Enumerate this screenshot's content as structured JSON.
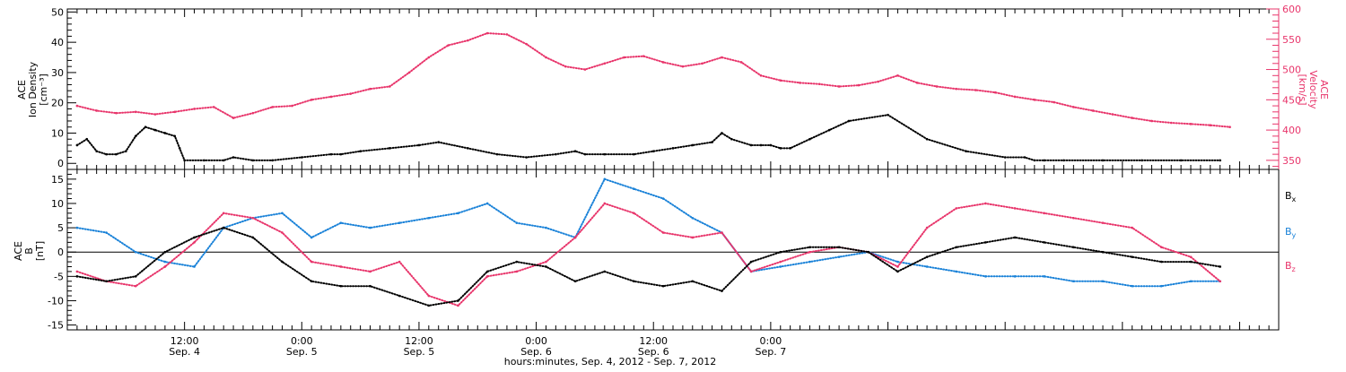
{
  "chart_data": [
    {
      "type": "scatter",
      "panel": "top",
      "left_axis_label": [
        "ACE",
        "Ion Density",
        "[cm⁻³]"
      ],
      "right_axis_label": [
        "ACE",
        "Velocity",
        "[km/s]"
      ],
      "ylim_left": [
        -2,
        51
      ],
      "ylim_right": [
        335,
        600
      ],
      "left_ticks": [
        "0",
        "10",
        "20",
        "30",
        "40",
        "50"
      ],
      "right_ticks": [
        "350",
        "400",
        "450",
        "500",
        "550",
        "600"
      ],
      "series": [
        {
          "name": "Density",
          "color": "#000000",
          "axis": "left",
          "x": [
            1.0,
            2.0,
            3.0,
            4.0,
            5.0,
            6.0,
            7.0,
            8.0,
            9.0,
            10.0,
            11.0,
            11.5,
            12.0,
            14.0,
            16.0,
            17.0,
            19.0,
            21.0,
            24.0,
            27.0,
            28.0,
            30.0,
            33.0,
            36.0,
            38.0,
            41.0,
            44.0,
            47.0,
            50.0,
            52.0,
            53.0,
            55.0,
            58.0,
            60.0,
            62.0,
            64.0,
            66.0,
            67.0,
            68.0,
            70.0,
            71.0,
            72.0,
            73.0,
            74.0,
            76.0,
            78.0,
            80.0,
            84.0,
            88.0,
            92.0,
            96.0,
            98.0,
            99.0,
            100.0,
            102.0,
            106.0,
            110.0,
            114.0,
            118.0
          ],
          "y": [
            6,
            8,
            4,
            3,
            3,
            4,
            9,
            12,
            11,
            10,
            9,
            5,
            1,
            1,
            1,
            2,
            1,
            1,
            2,
            3,
            3,
            4,
            5,
            6,
            7,
            5,
            3,
            2,
            3,
            4,
            3,
            3,
            3,
            4,
            5,
            6,
            7,
            10,
            8,
            6,
            6,
            6,
            5,
            5,
            8,
            11,
            14,
            16,
            8,
            4,
            2,
            2,
            1,
            1,
            1,
            1,
            1,
            1,
            1
          ]
        },
        {
          "name": "Velocity",
          "color": "#e8356b",
          "axis": "right",
          "x": [
            1.0,
            3.0,
            5.0,
            7.0,
            9.0,
            11.0,
            13.0,
            15.0,
            17.0,
            19.0,
            21.0,
            23.0,
            25.0,
            27.0,
            29.0,
            31.0,
            33.0,
            35.0,
            37.0,
            39.0,
            41.0,
            43.0,
            45.0,
            47.0,
            49.0,
            51.0,
            53.0,
            55.0,
            57.0,
            59.0,
            61.0,
            63.0,
            65.0,
            67.0,
            69.0,
            71.0,
            73.0,
            75.0,
            77.0,
            79.0,
            81.0,
            83.0,
            85.0,
            87.0,
            89.0,
            91.0,
            93.0,
            95.0,
            97.0,
            99.0,
            101.0,
            103.0,
            105.0,
            107.0,
            109.0,
            111.0,
            113.0,
            115.0,
            117.0,
            119.0
          ],
          "y": [
            440,
            432,
            428,
            430,
            426,
            430,
            435,
            438,
            420,
            428,
            438,
            440,
            450,
            455,
            460,
            468,
            472,
            495,
            520,
            540,
            548,
            560,
            558,
            542,
            520,
            505,
            500,
            510,
            520,
            522,
            512,
            505,
            510,
            520,
            512,
            490,
            482,
            478,
            476,
            472,
            474,
            480,
            490,
            478,
            472,
            468,
            466,
            462,
            455,
            450,
            446,
            438,
            432,
            426,
            420,
            415,
            412,
            410,
            408,
            405
          ]
        }
      ]
    },
    {
      "type": "scatter",
      "panel": "bottom",
      "left_axis_label": [
        "ACE",
        "B",
        "[nT]"
      ],
      "ylim": [
        -16,
        17
      ],
      "ticks": [
        "-15",
        "-10",
        "-5",
        "0",
        "5",
        "10",
        "15"
      ],
      "legend": [
        {
          "label": "B",
          "sub": "x",
          "color": "#000000"
        },
        {
          "label": "B",
          "sub": "y",
          "color": "#1a82d8"
        },
        {
          "label": "B",
          "sub": "z",
          "color": "#e8356b"
        }
      ],
      "series": [
        {
          "name": "Bx",
          "color": "#000000",
          "x": [
            1.0,
            4.0,
            7.0,
            10.0,
            13.0,
            16.0,
            19.0,
            22.0,
            25.0,
            28.0,
            31.0,
            34.0,
            37.0,
            40.0,
            43.0,
            46.0,
            49.0,
            52.0,
            55.0,
            58.0,
            61.0,
            64.0,
            67.0,
            70.0,
            73.0,
            76.0,
            79.0,
            82.0,
            85.0,
            88.0,
            91.0,
            94.0,
            97.0,
            100.0,
            103.0,
            106.0,
            109.0,
            112.0,
            115.0,
            118.0
          ],
          "y": [
            -5,
            -6,
            -5,
            0,
            3,
            5,
            3,
            -2,
            -6,
            -7,
            -7,
            -9,
            -11,
            -10,
            -4,
            -2,
            -3,
            -6,
            -4,
            -6,
            -7,
            -6,
            -8,
            -2,
            0,
            1,
            1,
            0,
            -4,
            -1,
            1,
            2,
            3,
            2,
            1,
            0,
            -1,
            -2,
            -2,
            -3
          ]
        },
        {
          "name": "By",
          "color": "#1a82d8",
          "x": [
            1.0,
            4.0,
            7.0,
            10.0,
            13.0,
            16.0,
            19.0,
            22.0,
            25.0,
            28.0,
            31.0,
            34.0,
            37.0,
            40.0,
            43.0,
            46.0,
            49.0,
            52.0,
            55.0,
            58.0,
            61.0,
            64.0,
            67.0,
            70.0,
            73.0,
            76.0,
            79.0,
            82.0,
            85.0,
            88.0,
            91.0,
            94.0,
            97.0,
            100.0,
            103.0,
            106.0,
            109.0,
            112.0,
            115.0,
            118.0
          ],
          "y": [
            5,
            4,
            0,
            -2,
            -3,
            5,
            7,
            8,
            3,
            6,
            5,
            6,
            7,
            8,
            10,
            6,
            5,
            3,
            15,
            13,
            11,
            7,
            4,
            -4,
            -3,
            -2,
            -1,
            0,
            -2,
            -3,
            -4,
            -5,
            -5,
            -5,
            -6,
            -6,
            -7,
            -7,
            -6,
            -6
          ]
        },
        {
          "name": "Bz",
          "color": "#e8356b",
          "x": [
            1.0,
            4.0,
            7.0,
            10.0,
            13.0,
            16.0,
            19.0,
            22.0,
            25.0,
            28.0,
            31.0,
            34.0,
            37.0,
            40.0,
            43.0,
            46.0,
            49.0,
            52.0,
            55.0,
            58.0,
            61.0,
            64.0,
            67.0,
            70.0,
            73.0,
            76.0,
            79.0,
            82.0,
            85.0,
            88.0,
            91.0,
            94.0,
            97.0,
            100.0,
            103.0,
            106.0,
            109.0,
            112.0,
            115.0,
            118.0
          ],
          "y": [
            -4,
            -6,
            -7,
            -3,
            2,
            8,
            7,
            4,
            -2,
            -3,
            -4,
            -2,
            -9,
            -11,
            -5,
            -4,
            -2,
            3,
            10,
            8,
            4,
            3,
            4,
            -4,
            -2,
            0,
            1,
            0,
            -3,
            5,
            9,
            10,
            9,
            8,
            7,
            6,
            5,
            1,
            -1,
            -6
          ]
        }
      ]
    }
  ],
  "xaxis": {
    "range_hours": [
      0,
      124
    ],
    "ticks": [
      {
        "h": 12,
        "time": "12:00",
        "day": "Sep. 4"
      },
      {
        "h": 24,
        "time": "0:00",
        "day": "Sep. 5"
      },
      {
        "h": 36,
        "time": "12:00",
        "day": "Sep. 5"
      },
      {
        "h": 48,
        "time": "0:00",
        "day": "Sep. 6"
      },
      {
        "h": 60,
        "time": "12:00",
        "day": "Sep. 6"
      },
      {
        "h": 72,
        "time": "0:00",
        "day": "Sep. 7"
      }
    ],
    "label": "hours:minutes, Sep.  4, 2012 - Sep.  7, 2012"
  }
}
